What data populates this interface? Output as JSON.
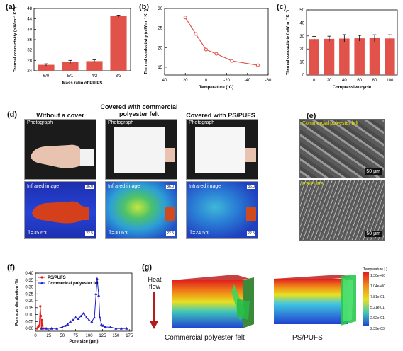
{
  "panels": {
    "a": "(a)",
    "b": "(b)",
    "c": "(c)",
    "d": "(d)",
    "e": "(e)",
    "f": "(f)",
    "g": "(g)"
  },
  "chart_data": [
    {
      "type": "bar",
      "id": "a",
      "categories": [
        "6/0",
        "5/1",
        "4/2",
        "3/3"
      ],
      "values": [
        26.3,
        27.4,
        27.7,
        45.0
      ],
      "errors": [
        0.4,
        0.6,
        0.5,
        0.4
      ],
      "ylim": [
        24,
        48
      ],
      "yticks": [
        24,
        28,
        32,
        36,
        40,
        44,
        48
      ],
      "xlabel": "Mass ratio of PU/PS",
      "ylabel": "Thermal conductivity (mW m⁻¹ K⁻¹)",
      "color": "#e0524a"
    },
    {
      "type": "line",
      "id": "b",
      "x": [
        20,
        10,
        0,
        -10,
        -25,
        -50
      ],
      "y": [
        27.7,
        23.5,
        19.5,
        18.4,
        16.6,
        15.5
      ],
      "errors": [
        0.4,
        0.4,
        0.4,
        0.3,
        0.3,
        0.3
      ],
      "xlim": [
        40,
        -60
      ],
      "xticks": [
        40,
        20,
        0,
        -20,
        -40,
        -60
      ],
      "ylim": [
        13,
        30
      ],
      "yticks": [
        15,
        20,
        25,
        30
      ],
      "xlabel": "Temperature (°C)",
      "ylabel": "Thermal conductivity (mW m⁻¹ K⁻¹)",
      "color": "#e0524a"
    },
    {
      "type": "bar",
      "id": "c",
      "categories": [
        "0",
        "20",
        "40",
        "60",
        "80",
        "100"
      ],
      "values": [
        27.6,
        27.8,
        28.0,
        28.2,
        28.3,
        28.1
      ],
      "errors": [
        2.0,
        2.0,
        3.0,
        2.2,
        2.6,
        2.8
      ],
      "ylim": [
        0,
        50
      ],
      "yticks": [
        0,
        10,
        20,
        30,
        40,
        50
      ],
      "xlabel": "Compressive cycle",
      "ylabel": "Thermal conductivity (mW m⁻¹ K⁻¹)",
      "color": "#e0524a"
    },
    {
      "type": "line",
      "id": "f",
      "xlim": [
        0,
        180
      ],
      "xticks": [
        0,
        25,
        50,
        75,
        100,
        125,
        150,
        175
      ],
      "ylim": [
        -0.02,
        0.4
      ],
      "yticks": [
        0.0,
        0.05,
        0.1,
        0.15,
        0.2,
        0.25,
        0.3,
        0.35,
        0.4
      ],
      "xlabel": "Pore size (μm)",
      "ylabel": "Pore size distribution (%)",
      "legend_position": "top-left",
      "series": [
        {
          "name": "PS/PUFS",
          "color": "#e21b1b",
          "marker": "circle",
          "x": [
            3,
            5,
            7,
            9,
            10,
            11,
            12,
            13,
            15
          ],
          "y": [
            0.0,
            0.01,
            0.02,
            0.16,
            0.09,
            0.0,
            0.06,
            0.02,
            0.0
          ]
        },
        {
          "name": "Commerical polyester felt",
          "color": "#1c1ccc",
          "marker": "triangle",
          "x": [
            12,
            20,
            30,
            40,
            50,
            55,
            60,
            65,
            70,
            75,
            80,
            85,
            90,
            95,
            100,
            105,
            110,
            113,
            115,
            118,
            120,
            123,
            126,
            130,
            140,
            150,
            160,
            170
          ],
          "y": [
            0.0,
            0.0,
            0.0,
            0.0,
            0.01,
            0.02,
            0.03,
            0.05,
            0.06,
            0.08,
            0.07,
            0.09,
            0.11,
            0.08,
            0.06,
            0.05,
            0.08,
            0.25,
            0.36,
            0.24,
            0.08,
            0.03,
            0.02,
            0.01,
            0.01,
            0.0,
            0.0,
            0.0
          ]
        }
      ]
    }
  ],
  "panel_d": {
    "col_titles": [
      "Without a cover",
      "Covered with commercial polyester felt",
      "Covered with PS/PUFS"
    ],
    "photo_tag": "Photograph",
    "ir_tag": "Infrared image",
    "max_label": "36.0",
    "min_label": "22.5",
    "temps": [
      "T̄=35.6℃",
      "T̄=30.6℃",
      "T̄=24.5℃"
    ]
  },
  "panel_e": {
    "top_tag": "Commercial polyester felt",
    "bottom_tag": "PS/PUFS",
    "scale": "50 μm"
  },
  "panel_g": {
    "heat_flow": "Heat flow",
    "left_label": "Commercial polyester felt",
    "right_label": "PS/PUFS",
    "colorbar_title": "Temperature [ ]",
    "colorbar_ticks": [
      "1.30e+00",
      "1.04e+00",
      "7.81e-01",
      "5.21e-01",
      "2.62e-01",
      "2.39e-03"
    ]
  }
}
